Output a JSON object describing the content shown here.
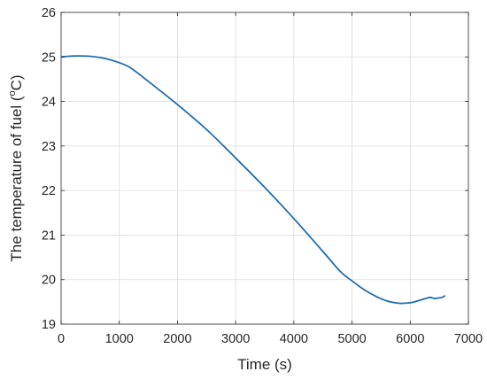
{
  "chart_data": {
    "type": "line",
    "title": "",
    "xlabel": "Time (s)",
    "ylabel": "The temperature of fuel (",
    "ylabel_sup": "o",
    "ylabel_tail": "C)",
    "xlim": [
      0,
      7000
    ],
    "ylim": [
      19,
      26
    ],
    "xticks": [
      "0",
      "1000",
      "2000",
      "3000",
      "4000",
      "5000",
      "6000",
      "7000"
    ],
    "yticks": [
      "19",
      "20",
      "21",
      "22",
      "23",
      "24",
      "25",
      "26"
    ],
    "grid": true,
    "legend": "none",
    "line_color": "#1f6fb0",
    "series": [
      {
        "x": [
          0,
          200,
          400,
          600,
          800,
          1000,
          1200,
          1500,
          2000,
          2500,
          3000,
          3500,
          4000,
          4500,
          4800,
          5000,
          5200,
          5400,
          5600,
          5800,
          5900,
          6000,
          6100,
          6200,
          6300,
          6350,
          6400,
          6450,
          6500,
          6550,
          6600
        ],
        "y": [
          25.0,
          25.02,
          25.02,
          25.0,
          24.95,
          24.87,
          24.75,
          24.45,
          23.93,
          23.37,
          22.73,
          22.07,
          21.37,
          20.63,
          20.18,
          19.97,
          19.78,
          19.63,
          19.52,
          19.47,
          19.47,
          19.48,
          19.51,
          19.55,
          19.59,
          19.6,
          19.58,
          19.58,
          19.59,
          19.6,
          19.64
        ]
      }
    ]
  }
}
